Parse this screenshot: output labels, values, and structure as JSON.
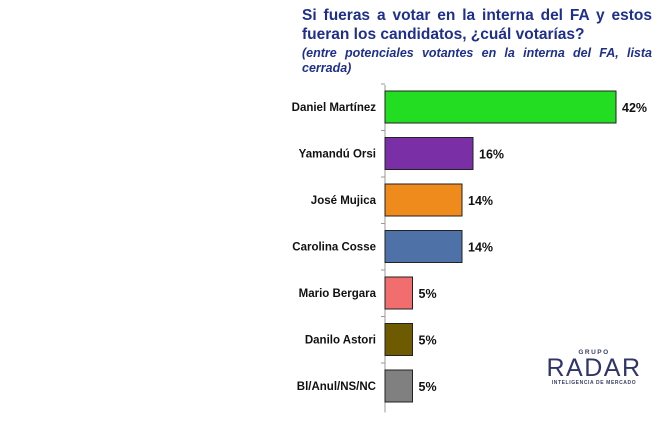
{
  "chart_data": {
    "type": "bar",
    "orientation": "horizontal",
    "title": "Si fueras a votar en la interna del FA y estos fueran los candidatos, ¿cuál votarías?",
    "subtitle": "(entre potenciales votantes en la interna del FA, lista cerrada)",
    "categories": [
      "Daniel Martínez",
      "Yamandú Orsi",
      "José Mujica",
      "Carolina Cosse",
      "Mario Bergara",
      "Danilo Astori",
      "Bl/Anul/NS/NC"
    ],
    "values": [
      42,
      16,
      14,
      14,
      5,
      5,
      5
    ],
    "value_labels": [
      "42%",
      "16%",
      "14%",
      "14%",
      "5%",
      "5%",
      "5%"
    ],
    "colors": [
      "#22dd22",
      "#7b2fa6",
      "#ef8a1c",
      "#4e72a8",
      "#f26d6d",
      "#6e5a00",
      "#808080"
    ],
    "xlim": [
      0,
      42
    ],
    "grid": false,
    "legend": "none"
  },
  "logo": {
    "top": "GRUPO",
    "name": "RADAR",
    "tagline": "INTELIGENCIA DE MERCADO"
  }
}
